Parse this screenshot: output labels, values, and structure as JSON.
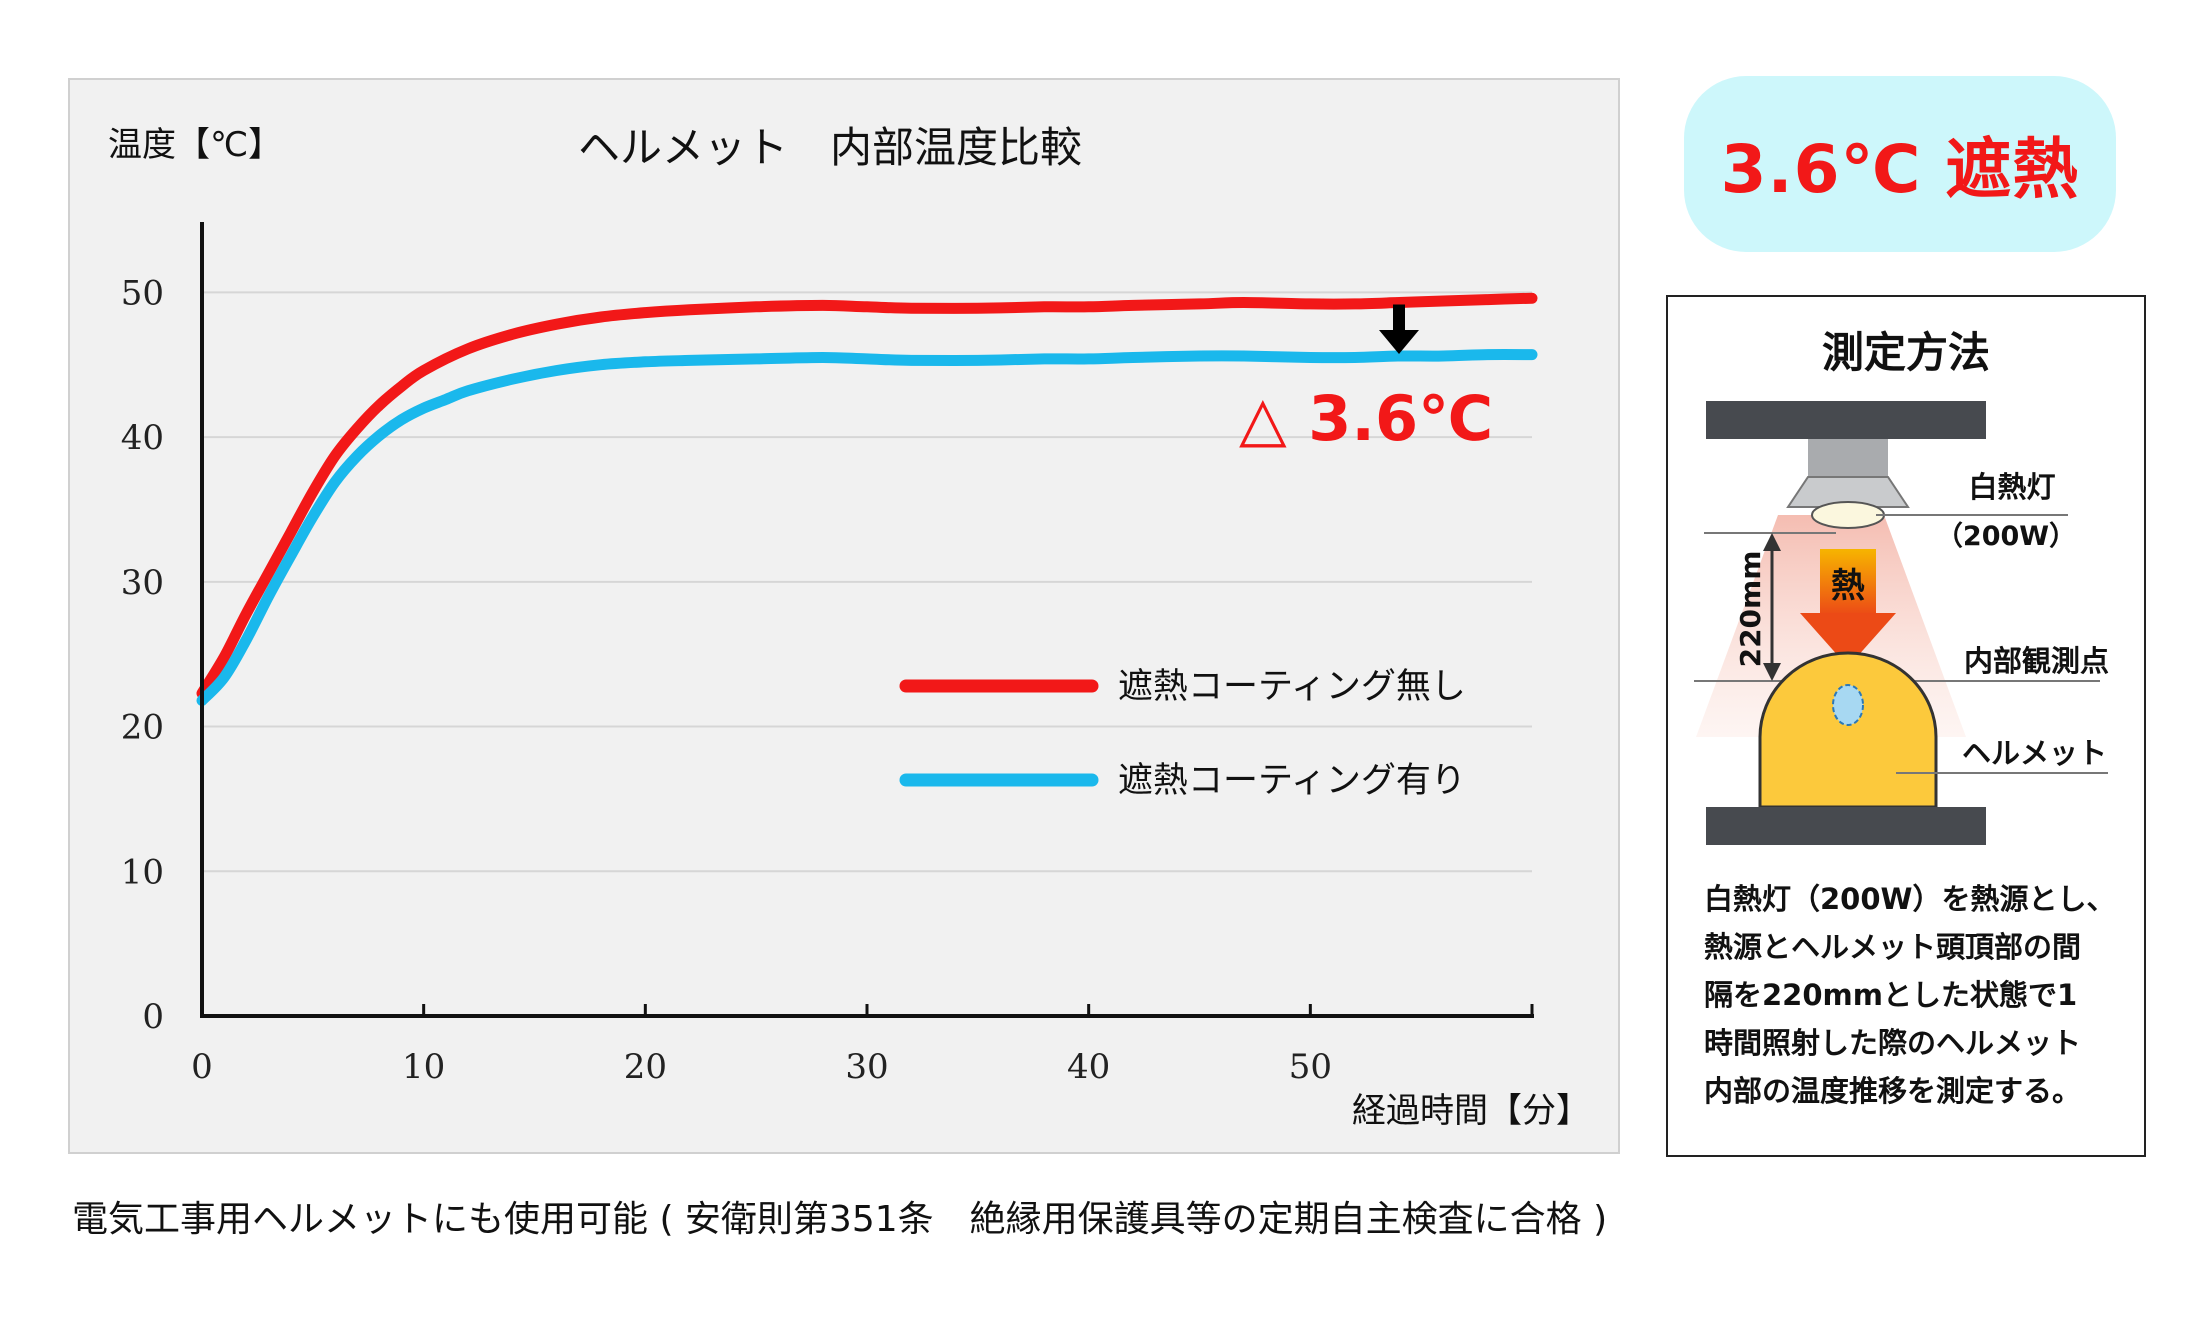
{
  "chart_data": {
    "type": "line",
    "title": "ヘルメット　内部温度比較",
    "ylabel": "温度【℃】",
    "xlabel": "経過時間【分】",
    "xlim": [
      0,
      60
    ],
    "ylim": [
      0,
      55
    ],
    "xticks": [
      0,
      10,
      20,
      30,
      40,
      50
    ],
    "yticks": [
      0,
      10,
      20,
      30,
      40,
      50
    ],
    "grid": "horizontal",
    "legend_position": "lower-right",
    "series": [
      {
        "name": "遮熱コーティング無し",
        "color": "#f21818",
        "x": [
          0,
          1,
          2,
          3,
          4,
          5,
          6,
          7,
          8,
          9,
          10,
          12,
          14,
          16,
          18,
          20,
          22,
          25,
          28,
          30,
          32,
          35,
          38,
          40,
          42,
          45,
          47,
          50,
          52,
          54,
          56,
          58,
          60
        ],
        "y": [
          22.3,
          24.8,
          27.8,
          30.6,
          33.4,
          36.2,
          38.7,
          40.6,
          42.2,
          43.5,
          44.6,
          46.1,
          47.1,
          47.8,
          48.3,
          48.6,
          48.8,
          49.0,
          49.1,
          49.0,
          48.9,
          48.9,
          49.0,
          49.0,
          49.1,
          49.2,
          49.3,
          49.2,
          49.2,
          49.3,
          49.4,
          49.5,
          49.6
        ]
      },
      {
        "name": "遮熱コーティング有り",
        "color": "#1ab8ec",
        "x": [
          0,
          1,
          2,
          3,
          4,
          5,
          6,
          7,
          8,
          9,
          10,
          11,
          12,
          14,
          16,
          18,
          20,
          22,
          25,
          28,
          30,
          32,
          35,
          38,
          40,
          42,
          45,
          47,
          50,
          52,
          54,
          56,
          58,
          60
        ],
        "y": [
          21.8,
          23.4,
          26.0,
          29.0,
          31.8,
          34.5,
          36.9,
          38.7,
          40.1,
          41.2,
          42.0,
          42.6,
          43.2,
          44.0,
          44.6,
          45.0,
          45.2,
          45.3,
          45.4,
          45.5,
          45.4,
          45.3,
          45.3,
          45.4,
          45.4,
          45.5,
          45.6,
          45.6,
          45.5,
          45.5,
          45.6,
          45.6,
          45.7,
          45.7
        ]
      }
    ],
    "annotations": [
      {
        "text": "△ 3.6℃",
        "color": "#f21818",
        "at_x": 54,
        "from_y": 49.3,
        "to_y": 45.6
      }
    ]
  },
  "badge": {
    "text": "3.6℃ 遮熱",
    "color": "#f21818",
    "bg_color": "#cdf7fb"
  },
  "method": {
    "title": "測定方法",
    "diagram": {
      "lamp_label": "白熱灯",
      "lamp_power": "（200W）",
      "distance": "220mm",
      "heat_label": "熱",
      "point_label": "内部観測点",
      "helmet_label": "ヘルメット"
    },
    "description_lines": [
      "白熱灯（200W）を熱源とし、",
      "熱源とヘルメット頭頂部の間",
      "隔を220mmとした状態で1",
      "時間照射した際のヘルメット",
      "内部の温度推移を測定する。"
    ]
  },
  "footnote": "電気工事用ヘルメットにも使用可能 ( 安衛則第351条　絶縁用保護具等の定期自主検査に合格 )"
}
